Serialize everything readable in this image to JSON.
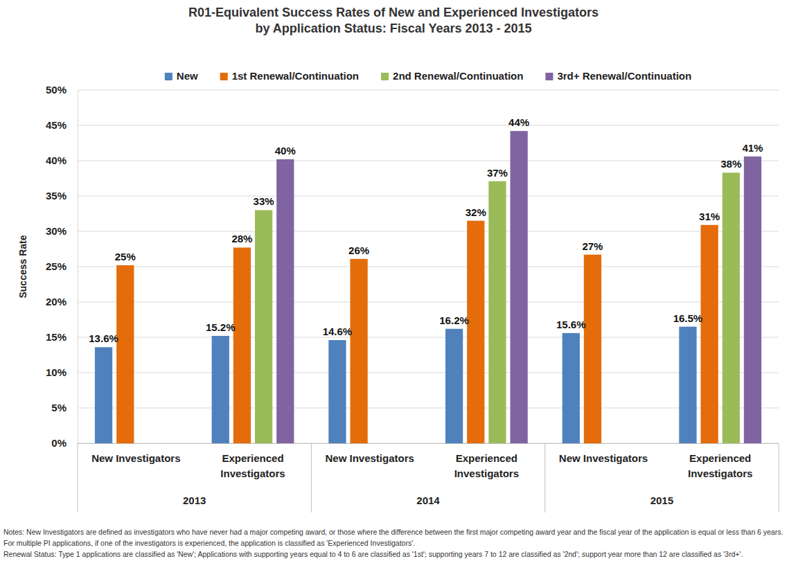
{
  "chart_data": {
    "type": "bar",
    "title": "R01-Equivalent Success Rates of New and Experienced Investigators\nby Application Status:  Fiscal Years 2013 - 2015",
    "y_label": "Success Rate",
    "categories": [
      "New Investigators",
      "Experienced Investigators",
      "New Investigators",
      "Experienced Investigators",
      "New Investigators",
      "Experienced Investigators"
    ],
    "category_groups": [
      "2013",
      "2014",
      "2015"
    ],
    "series": [
      {
        "name": "New",
        "color": "#4f81bd",
        "values": [
          13.6,
          15.2,
          14.6,
          16.2,
          15.6,
          16.5
        ],
        "value_labels": [
          "13.6%",
          "15.2%",
          "14.6%",
          "16.2%",
          "15.6%",
          "16.5%"
        ]
      },
      {
        "name": "1st Renewal/Continuation",
        "color": "#e46c0a",
        "values": [
          25.2,
          27.7,
          26.1,
          31.5,
          26.7,
          30.9
        ],
        "value_labels": [
          "25%",
          "28%",
          "26%",
          "32%",
          "27%",
          "31%"
        ]
      },
      {
        "name": "2nd Renewal/Continuation",
        "color": "#9bbb59",
        "values": [
          null,
          33.0,
          null,
          37.1,
          null,
          38.3
        ],
        "value_labels": [
          null,
          "33%",
          null,
          "37%",
          null,
          "38%"
        ]
      },
      {
        "name": "3rd+ Renewal/Continuation",
        "color": "#8064a2",
        "values": [
          null,
          40.2,
          null,
          44.2,
          null,
          40.6
        ],
        "value_labels": [
          null,
          "40%",
          null,
          "44%",
          null,
          "41%"
        ]
      }
    ],
    "ylim": [
      0,
      50
    ],
    "yticks": [
      {
        "value": 0,
        "label": "0%"
      },
      {
        "value": 5,
        "label": "5%"
      },
      {
        "value": 10,
        "label": "10%"
      },
      {
        "value": 15,
        "label": "15%"
      },
      {
        "value": 20,
        "label": "20%"
      },
      {
        "value": 25,
        "label": "25%"
      },
      {
        "value": 30,
        "label": "30%"
      },
      {
        "value": 35,
        "label": "35%"
      },
      {
        "value": 40,
        "label": "40%"
      },
      {
        "value": 45,
        "label": "45%"
      },
      {
        "value": 50,
        "label": "50%"
      }
    ],
    "grid": true,
    "legend": "top",
    "data_labels": true,
    "notes": [
      "Notes: New Investigators are defined as investigators who have never had a major competing award, or those where the difference between the first major competing award year and the fiscal year of the application is equal or less than 6 years.",
      "For multiple PI applications, if one of the investigators is experienced, the application is classified as 'Experienced Investigators'.",
      "Renewal Status:  Type 1 applications are classified as 'New'; Applications with supporting years equal to 4 to 6 are classified as '1st'; supporting years 7 to 12 are classified as '2nd'; support year more than 12 are classified as '3rd+'."
    ]
  }
}
